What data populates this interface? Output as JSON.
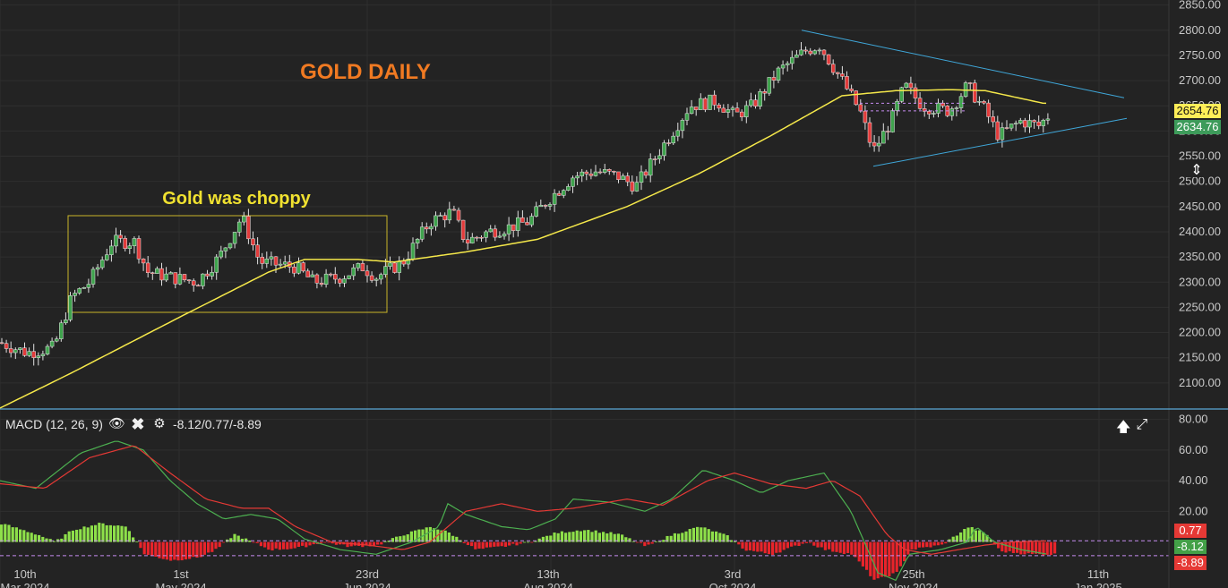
{
  "chart_data": {
    "type": "candlestick",
    "title": "GOLD DAILY",
    "annotation": "Gold was choppy",
    "price_axis": {
      "ylim": [
        2050,
        2860
      ],
      "ticks": [
        "2850.00",
        "2800.00",
        "2750.00",
        "2700.00",
        "2650.00",
        "2600.00",
        "2550.00",
        "2500.00",
        "2450.00",
        "2400.00",
        "2350.00",
        "2300.00",
        "2250.00",
        "2200.00",
        "2150.00",
        "2100.00"
      ]
    },
    "price_badges": {
      "upper": "2654.76",
      "lower": "2634.76"
    },
    "moving_average_anchors": [
      [
        0,
        2050
      ],
      [
        80,
        2120
      ],
      [
        200,
        2230
      ],
      [
        300,
        2320
      ],
      [
        340,
        2345
      ],
      [
        400,
        2345
      ],
      [
        440,
        2340
      ],
      [
        520,
        2360
      ],
      [
        600,
        2385
      ],
      [
        700,
        2450
      ],
      [
        780,
        2515
      ],
      [
        860,
        2590
      ],
      [
        940,
        2670
      ],
      [
        1000,
        2680
      ],
      [
        1060,
        2682
      ],
      [
        1100,
        2680
      ],
      [
        1165,
        2655
      ]
    ],
    "candle_anchors": [
      [
        0,
        2180
      ],
      [
        30,
        2160
      ],
      [
        60,
        2170
      ],
      [
        80,
        2270
      ],
      [
        100,
        2300
      ],
      [
        125,
        2380
      ],
      [
        150,
        2380
      ],
      [
        165,
        2320
      ],
      [
        190,
        2310
      ],
      [
        220,
        2300
      ],
      [
        245,
        2350
      ],
      [
        270,
        2430
      ],
      [
        290,
        2340
      ],
      [
        330,
        2330
      ],
      [
        350,
        2300
      ],
      [
        380,
        2310
      ],
      [
        405,
        2330
      ],
      [
        420,
        2310
      ],
      [
        450,
        2340
      ],
      [
        480,
        2420
      ],
      [
        505,
        2440
      ],
      [
        520,
        2380
      ],
      [
        545,
        2400
      ],
      [
        570,
        2410
      ],
      [
        590,
        2420
      ],
      [
        610,
        2460
      ],
      [
        640,
        2510
      ],
      [
        665,
        2520
      ],
      [
        690,
        2510
      ],
      [
        710,
        2490
      ],
      [
        740,
        2570
      ],
      [
        770,
        2650
      ],
      [
        800,
        2660
      ],
      [
        820,
        2630
      ],
      [
        840,
        2650
      ],
      [
        870,
        2720
      ],
      [
        900,
        2760
      ],
      [
        915,
        2770
      ],
      [
        940,
        2700
      ],
      [
        960,
        2640
      ],
      [
        975,
        2560
      ],
      [
        995,
        2620
      ],
      [
        1010,
        2690
      ],
      [
        1030,
        2650
      ],
      [
        1060,
        2640
      ],
      [
        1080,
        2690
      ],
      [
        1100,
        2640
      ],
      [
        1115,
        2590
      ],
      [
        1140,
        2620
      ],
      [
        1160,
        2610
      ],
      [
        1170,
        2630
      ]
    ],
    "triangle_lines": {
      "upper": [
        [
          895,
          2800
        ],
        [
          1255,
          2666
        ]
      ],
      "lower": [
        [
          975,
          2530
        ],
        [
          1258,
          2625
        ]
      ]
    },
    "dashed_levels": [
      [
        960,
        2655
      ],
      [
        1080,
        2655
      ],
      [
        960,
        2640
      ],
      [
        1080,
        2640
      ]
    ],
    "x_labels": [
      {
        "text": "10th",
        "sub": "Mar 2024"
      },
      {
        "text": "1st",
        "sub": "May 2024"
      },
      {
        "text": "23rd",
        "sub": "Jun 2024"
      },
      {
        "text": "13th",
        "sub": "Aug 2024"
      },
      {
        "text": "3rd",
        "sub": "Oct 2024"
      },
      {
        "text": "25th",
        "sub": "Nov 2024"
      },
      {
        "text": "11th",
        "sub": "Jan 2025"
      }
    ],
    "macd": {
      "label": "MACD (12, 26, 9)",
      "values_text": "-8.12/0.77/-8.89",
      "ylim": [
        -30,
        85
      ],
      "ticks": [
        "80.00",
        "60.00",
        "40.00",
        "20.00"
      ],
      "badges": {
        "signal": "0.77",
        "macd": "-8.12",
        "hist": "-8.89"
      },
      "macd_anchors": [
        [
          0,
          40
        ],
        [
          40,
          35
        ],
        [
          90,
          58
        ],
        [
          130,
          66
        ],
        [
          160,
          60
        ],
        [
          190,
          40
        ],
        [
          220,
          25
        ],
        [
          250,
          15
        ],
        [
          280,
          18
        ],
        [
          310,
          15
        ],
        [
          340,
          2
        ],
        [
          380,
          -5
        ],
        [
          420,
          -8
        ],
        [
          460,
          0
        ],
        [
          490,
          10
        ],
        [
          500,
          25
        ],
        [
          520,
          18
        ],
        [
          560,
          10
        ],
        [
          590,
          8
        ],
        [
          620,
          15
        ],
        [
          640,
          28
        ],
        [
          680,
          26
        ],
        [
          720,
          20
        ],
        [
          750,
          28
        ],
        [
          785,
          47
        ],
        [
          820,
          40
        ],
        [
          850,
          32
        ],
        [
          880,
          40
        ],
        [
          920,
          45
        ],
        [
          950,
          20
        ],
        [
          980,
          -20
        ],
        [
          1000,
          -25
        ],
        [
          1015,
          -8
        ],
        [
          1050,
          -5
        ],
        [
          1080,
          0
        ],
        [
          1090,
          10
        ],
        [
          1110,
          0
        ],
        [
          1140,
          -5
        ],
        [
          1170,
          -8
        ]
      ],
      "signal_anchors": [
        [
          0,
          38
        ],
        [
          50,
          35
        ],
        [
          100,
          55
        ],
        [
          150,
          63
        ],
        [
          190,
          45
        ],
        [
          230,
          28
        ],
        [
          270,
          22
        ],
        [
          300,
          22
        ],
        [
          330,
          10
        ],
        [
          370,
          0
        ],
        [
          410,
          -2
        ],
        [
          450,
          -5
        ],
        [
          480,
          0
        ],
        [
          520,
          20
        ],
        [
          560,
          25
        ],
        [
          600,
          20
        ],
        [
          640,
          22
        ],
        [
          700,
          28
        ],
        [
          740,
          24
        ],
        [
          790,
          40
        ],
        [
          820,
          45
        ],
        [
          860,
          38
        ],
        [
          900,
          35
        ],
        [
          930,
          40
        ],
        [
          960,
          30
        ],
        [
          990,
          5
        ],
        [
          1010,
          -5
        ],
        [
          1040,
          -8
        ],
        [
          1070,
          -5
        ],
        [
          1100,
          -2
        ],
        [
          1130,
          0
        ],
        [
          1170,
          0.77
        ]
      ],
      "hist_anchors": [
        [
          0,
          12
        ],
        [
          40,
          5
        ],
        [
          60,
          0
        ],
        [
          80,
          8
        ],
        [
          110,
          12
        ],
        [
          140,
          10
        ],
        [
          160,
          -8
        ],
        [
          190,
          -12
        ],
        [
          220,
          -10
        ],
        [
          240,
          -5
        ],
        [
          260,
          5
        ],
        [
          280,
          0
        ],
        [
          300,
          -5
        ],
        [
          330,
          -4
        ],
        [
          360,
          0
        ],
        [
          390,
          -3
        ],
        [
          420,
          -2
        ],
        [
          450,
          5
        ],
        [
          480,
          10
        ],
        [
          500,
          6
        ],
        [
          530,
          -5
        ],
        [
          560,
          -3
        ],
        [
          590,
          0
        ],
        [
          620,
          6
        ],
        [
          650,
          8
        ],
        [
          690,
          5
        ],
        [
          720,
          -3
        ],
        [
          750,
          5
        ],
        [
          780,
          10
        ],
        [
          810,
          4
        ],
        [
          830,
          -5
        ],
        [
          860,
          -8
        ],
        [
          900,
          0
        ],
        [
          920,
          -5
        ],
        [
          950,
          -8
        ],
        [
          975,
          -25
        ],
        [
          1000,
          -20
        ],
        [
          1015,
          -5
        ],
        [
          1050,
          -2
        ],
        [
          1080,
          10
        ],
        [
          1100,
          5
        ],
        [
          1115,
          -6
        ],
        [
          1150,
          -8
        ],
        [
          1180,
          -8
        ]
      ],
      "dashed_levels": [
        0.77,
        -8.89
      ]
    }
  }
}
